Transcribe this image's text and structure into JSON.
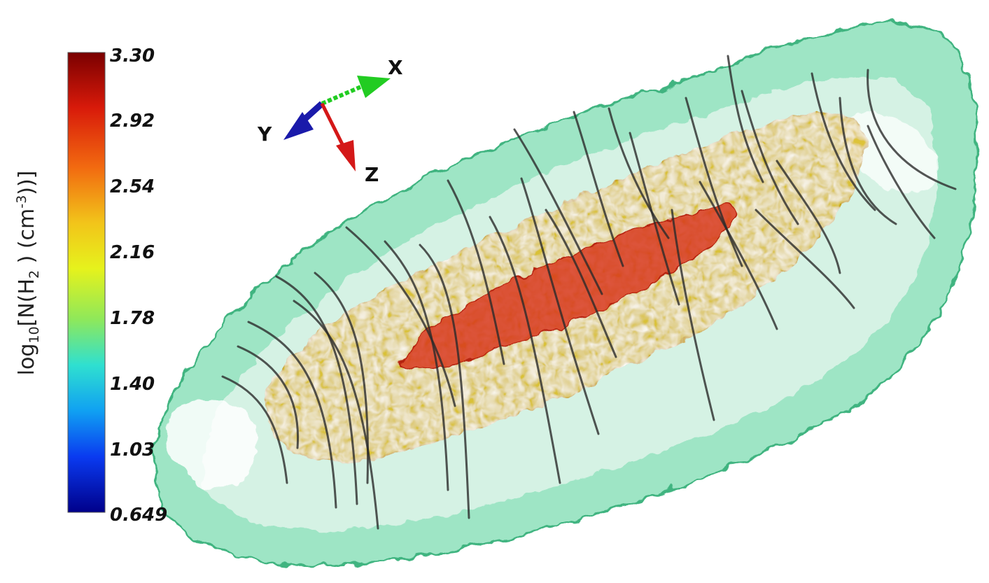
{
  "colorbar": {
    "title_prefix": "log",
    "title_log_base": "10",
    "title_quantity": "[N(H",
    "title_subscript": "2",
    "title_unit_open": " ) (cm",
    "title_unit_exponent": "-3",
    "title_close": "))]",
    "ticks": [
      "3.30",
      "2.92",
      "2.54",
      "2.16",
      "1.78",
      "1.40",
      "1.03",
      "0.649"
    ],
    "colors": [
      "#7a0000",
      "#d81a0a",
      "#f26a10",
      "#f2c41a",
      "#e6f21c",
      "#8fe85a",
      "#2fe0d0",
      "#10a0f2",
      "#0a3af0",
      "#00008a"
    ]
  },
  "axes_triad": {
    "x_label": "X",
    "y_label": "Y",
    "z_label": "Z",
    "x_color": "#22cc22",
    "y_color": "#1a1aaa",
    "z_color": "#d41818"
  },
  "isosurfaces": {
    "outer_color": "#4fcf96",
    "middle_color": "#d9b81a",
    "inner_color": "#d8321c"
  },
  "field_lines": {
    "color": "#2a2a2a"
  }
}
